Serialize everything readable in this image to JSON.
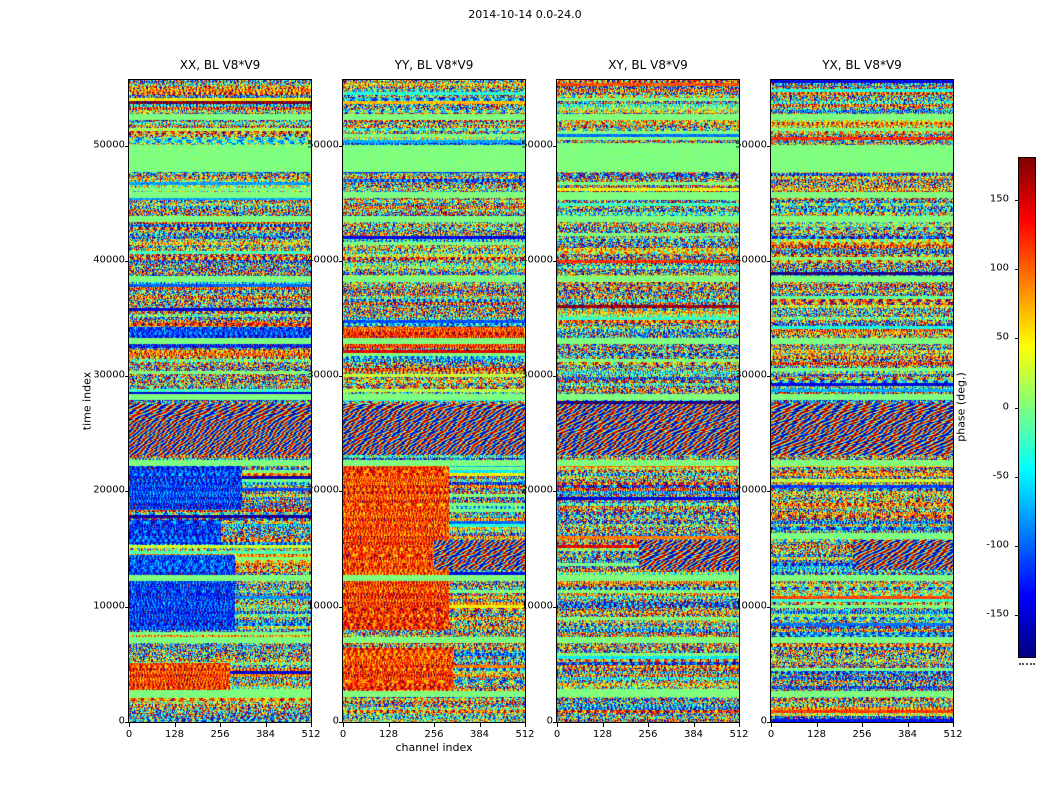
{
  "figure": {
    "title": "2014-10-14 0.0-24.0"
  },
  "chart_data": {
    "type": "heatmap",
    "title": "2014-10-14 0.0-24.0",
    "xlabel": "channel index",
    "ylabel": "time index",
    "colorbar_label": "phase (deg.)",
    "colormap": "jet",
    "value_range": [
      -180,
      180
    ],
    "x_range": [
      0,
      512
    ],
    "y_range": [
      0,
      55700
    ],
    "xticks": [
      0,
      128,
      256,
      384,
      512
    ],
    "yticks": [
      0,
      10000,
      20000,
      30000,
      40000,
      50000
    ],
    "colorbar_ticks": [
      -150,
      -100,
      -50,
      0,
      50,
      100,
      150
    ],
    "panels": [
      {
        "label": "XX, BL V8*V9",
        "regions": [
          {
            "t0": 2800,
            "t1": 5200,
            "c0": 0,
            "c1": 0.55,
            "mode": "orange"
          },
          {
            "t0": 8000,
            "t1": 14500,
            "c0": 0,
            "c1": 0.58,
            "mode": "blue"
          },
          {
            "t0": 15500,
            "t1": 17600,
            "c0": 0,
            "c1": 0.5,
            "mode": "blue"
          },
          {
            "t0": 18400,
            "t1": 22300,
            "c0": 0,
            "c1": 0.62,
            "mode": "blue"
          },
          {
            "t0": 32500,
            "t1": 34300,
            "c0": 0,
            "c1": 1.0,
            "mode": "blue"
          }
        ]
      },
      {
        "label": "YY, BL V8*V9",
        "regions": [
          {
            "t0": 2800,
            "t1": 6500,
            "c0": 0,
            "c1": 0.6,
            "mode": "orange"
          },
          {
            "t0": 8000,
            "t1": 22300,
            "c0": 0,
            "c1": 0.58,
            "mode": "orange"
          },
          {
            "t0": 13200,
            "t1": 15800,
            "c0": 0.5,
            "c1": 1.0,
            "mode": "wavy"
          },
          {
            "t0": 32500,
            "t1": 34300,
            "c0": 0,
            "c1": 1.0,
            "mode": "orange"
          }
        ]
      },
      {
        "label": "XY, BL V8*V9",
        "regions": [
          {
            "t0": 13200,
            "t1": 15800,
            "c0": 0.45,
            "c1": 1.0,
            "mode": "wavy"
          }
        ]
      },
      {
        "label": "YX, BL V8*V9",
        "regions": [
          {
            "t0": 13200,
            "t1": 15800,
            "c0": 0.45,
            "c1": 1.0,
            "mode": "wavy"
          }
        ]
      }
    ],
    "shared_regions": [
      {
        "t0": 47800,
        "t1": 50100,
        "mode": "green"
      },
      {
        "t0": 23200,
        "t1": 27600,
        "mode": "wavy"
      }
    ],
    "green_lines": [
      2500,
      7200,
      12500,
      22500,
      28200,
      33100,
      38500,
      43700,
      45800,
      52500
    ],
    "green_line_halfwidth": 260
  }
}
